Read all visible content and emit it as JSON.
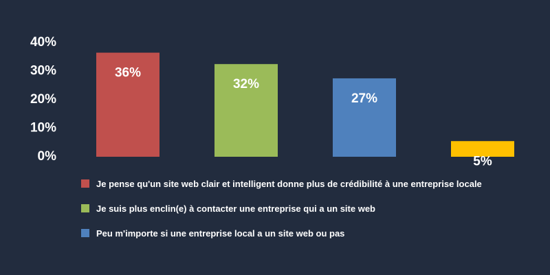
{
  "colors": {
    "background": "#222c3e",
    "text": "#ffffff"
  },
  "chart_data": {
    "type": "bar",
    "title": "",
    "xlabel": "",
    "ylabel": "",
    "ylim": [
      0,
      40
    ],
    "yticks": [
      0,
      10,
      20,
      30,
      40
    ],
    "ytick_labels": [
      "0%",
      "10%",
      "20%",
      "30%",
      "40%"
    ],
    "grid": false,
    "legend_position": "bottom",
    "categories": [
      "Je pense qu'un site web clair et intelligent donne plus de crédibilité à une entreprise locale",
      "Je suis plus enclin(e) à contacter une entreprise qui a un site web",
      "Peu m'importe si une entreprise local a un site web ou pas",
      ""
    ],
    "values": [
      36,
      32,
      27,
      5
    ],
    "data_labels": [
      "36%",
      "32%",
      "27%",
      "5%"
    ],
    "bar_colors": [
      "#c0504d",
      "#9bbb59",
      "#4f81bd",
      "#ffc000"
    ]
  },
  "legend": {
    "items": [
      {
        "label": "Je pense qu'un site web clair et intelligent donne plus de crédibilité à une entreprise locale",
        "color": "#c0504d"
      },
      {
        "label": "Je suis plus enclin(e) à contacter une entreprise qui a un site web",
        "color": "#9bbb59"
      },
      {
        "label": "Peu m'importe si une entreprise local a un site web ou pas",
        "color": "#4f81bd"
      }
    ]
  }
}
